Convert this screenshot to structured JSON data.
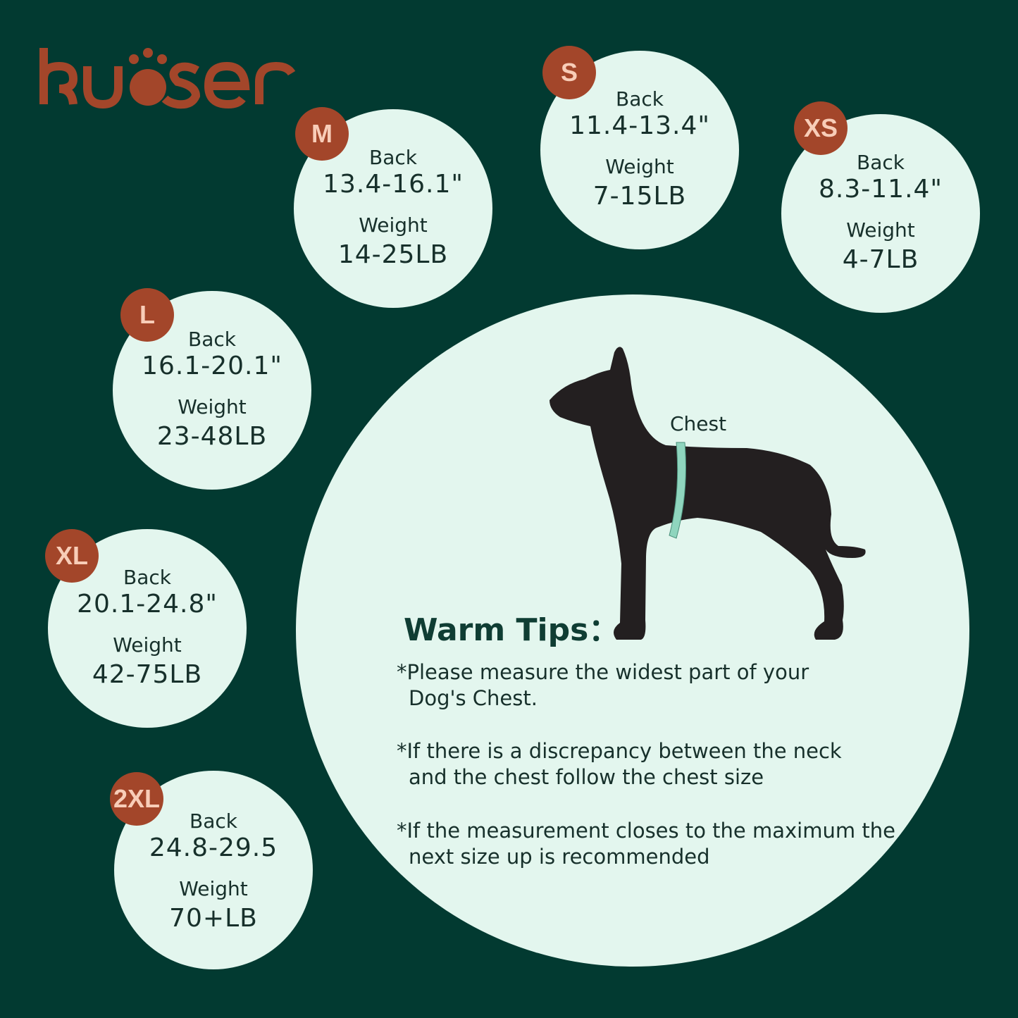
{
  "brand": {
    "name": "kuoser",
    "color": "#a3462a"
  },
  "colors": {
    "background": "#023a31",
    "circle": "#e3f6ee",
    "badge": "#a3462a",
    "badge_text": "#f8cdb8"
  },
  "sizes": [
    {
      "size": "M",
      "back_label": "Back",
      "back": "13.4-16.1\"",
      "weight_label": "Weight",
      "weight": "14-25LB"
    },
    {
      "size": "S",
      "back_label": "Back",
      "back": "11.4-13.4\"",
      "weight_label": "Weight",
      "weight": "7-15LB"
    },
    {
      "size": "XS",
      "back_label": "Back",
      "back": "8.3-11.4\"",
      "weight_label": "Weight",
      "weight": "4-7LB"
    },
    {
      "size": "L",
      "back_label": "Back",
      "back": "16.1-20.1\"",
      "weight_label": "Weight",
      "weight": "23-48LB"
    },
    {
      "size": "XL",
      "back_label": "Back",
      "back": "20.1-24.8\"",
      "weight_label": "Weight",
      "weight": "42-75LB"
    },
    {
      "size": "2XL",
      "back_label": "Back",
      "back": "24.8-29.5",
      "weight_label": "Weight",
      "weight": "70+LB"
    }
  ],
  "diagram": {
    "chest_label": "Chest"
  },
  "tips": {
    "title": "Warm Tips：",
    "items": [
      "*Please measure the widest part of your Dog's Chest.",
      "*If there is a discrepancy between the neck and the chest follow the chest size",
      "*If the measurement closes to the maximum the next size up is recommended"
    ]
  }
}
